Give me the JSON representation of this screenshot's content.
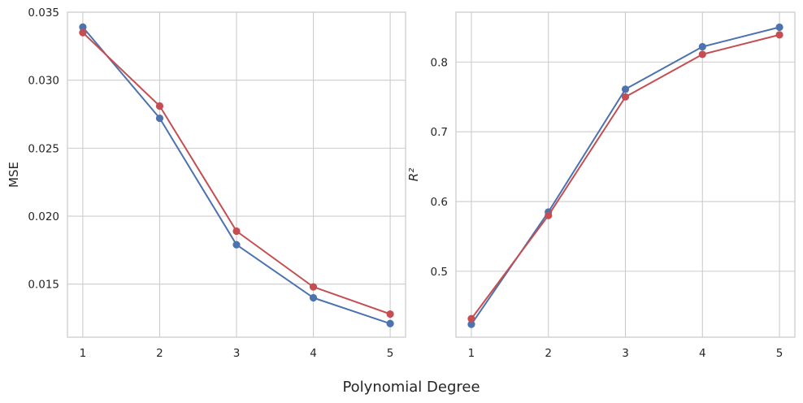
{
  "figure": {
    "xlabel": "Polynomial Degree"
  },
  "colors": {
    "series_a": "#4c72b0",
    "series_b": "#c44e52",
    "grid": "#cccccc",
    "background": "#ffffff"
  },
  "chart_data": [
    {
      "type": "line",
      "xlabel": "",
      "ylabel": "MSE",
      "x": [
        1,
        2,
        3,
        4,
        5
      ],
      "xticks": [
        "1",
        "2",
        "3",
        "4",
        "5"
      ],
      "xlim": [
        0.8,
        5.2
      ],
      "ylim": [
        0.0111,
        0.035
      ],
      "yticks": [
        0.015,
        0.02,
        0.025,
        0.03,
        0.035
      ],
      "ytick_labels": [
        "0.015",
        "0.020",
        "0.025",
        "0.030",
        "0.035"
      ],
      "grid": true,
      "series": [
        {
          "color": "#4c72b0",
          "marker": "circle",
          "values": [
            0.0339,
            0.0272,
            0.0179,
            0.014,
            0.0121
          ]
        },
        {
          "color": "#c44e52",
          "marker": "circle",
          "values": [
            0.0335,
            0.0281,
            0.0189,
            0.0148,
            0.0128
          ]
        }
      ]
    },
    {
      "type": "line",
      "xlabel": "",
      "ylabel": "R²",
      "x": [
        1,
        2,
        3,
        4,
        5
      ],
      "xticks": [
        "1",
        "2",
        "3",
        "4",
        "5"
      ],
      "xlim": [
        0.8,
        5.2
      ],
      "ylim": [
        0.4055,
        0.8715
      ],
      "yticks": [
        0.5,
        0.6,
        0.7,
        0.8
      ],
      "ytick_labels": [
        "0.5",
        "0.6",
        "0.7",
        "0.8"
      ],
      "grid": true,
      "series": [
        {
          "color": "#4c72b0",
          "marker": "circle",
          "values": [
            0.424,
            0.585,
            0.761,
            0.822,
            0.85
          ]
        },
        {
          "color": "#c44e52",
          "marker": "circle",
          "values": [
            0.432,
            0.58,
            0.75,
            0.811,
            0.839
          ]
        }
      ]
    }
  ]
}
